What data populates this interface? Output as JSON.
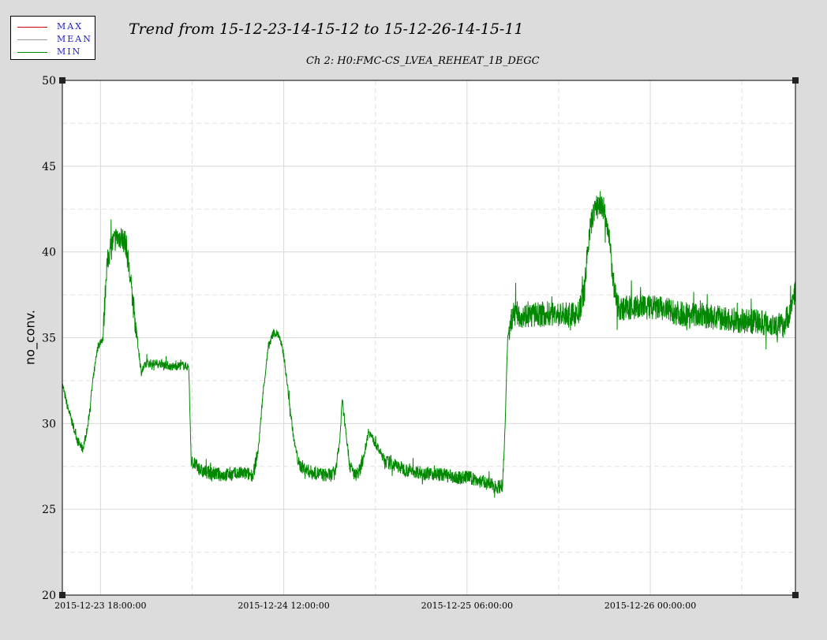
{
  "legend": {
    "items": [
      {
        "label": "MAX",
        "color": "#cc0000"
      },
      {
        "label": "MEAN",
        "color": "#999999"
      },
      {
        "label": "MIN",
        "color": "#008800"
      }
    ]
  },
  "chart_data": {
    "type": "line",
    "title": "Trend from 15-12-23-14-15-12 to 15-12-26-14-15-11",
    "subtitle": "Ch 2: H0:FMC-CS_LVEA_REHEAT_1B_DEGC",
    "xlabel": "",
    "ylabel": "no_conv.",
    "x_range": [
      "2015-12-23 14:15:12",
      "2015-12-26 14:15:11"
    ],
    "ylim": [
      20,
      50
    ],
    "yticks": [
      20,
      25,
      30,
      35,
      40,
      45,
      50
    ],
    "xticks": [
      {
        "time": "2015-12-23 18:00:00",
        "label": "2015-12-23 18:00:00"
      },
      {
        "time": "2015-12-24 12:00:00",
        "label": "2015-12-24 12:00:00"
      },
      {
        "time": "2015-12-25 06:00:00",
        "label": "2015-12-25 06:00:00"
      },
      {
        "time": "2015-12-26 00:00:00",
        "label": "2015-12-26 00:00:00"
      }
    ],
    "grid": true,
    "series": [
      {
        "name": "MIN",
        "color": "#008800",
        "points": [
          [
            "2015-12-23 14:15",
            32.3
          ],
          [
            "2015-12-23 14:45",
            31.0
          ],
          [
            "2015-12-23 15:15",
            30.0
          ],
          [
            "2015-12-23 15:45",
            29.0
          ],
          [
            "2015-12-23 16:15",
            28.5
          ],
          [
            "2015-12-23 16:45",
            29.8
          ],
          [
            "2015-12-23 17:15",
            32.5
          ],
          [
            "2015-12-23 17:45",
            34.5
          ],
          [
            "2015-12-23 18:15",
            35.0
          ],
          [
            "2015-12-23 18:35",
            39.0
          ],
          [
            "2015-12-23 19:00",
            40.3
          ],
          [
            "2015-12-23 19:30",
            40.8
          ],
          [
            "2015-12-23 20:00",
            40.9
          ],
          [
            "2015-12-23 20:30",
            40.5
          ],
          [
            "2015-12-23 21:00",
            38.0
          ],
          [
            "2015-12-23 21:30",
            35.5
          ],
          [
            "2015-12-23 22:00",
            33.0
          ],
          [
            "2015-12-23 22:30",
            33.5
          ],
          [
            "2015-12-24 00:00",
            33.5
          ],
          [
            "2015-12-24 01:00",
            33.3
          ],
          [
            "2015-12-24 02:00",
            33.4
          ],
          [
            "2015-12-24 02:40",
            33.3
          ],
          [
            "2015-12-24 02:55",
            27.8
          ],
          [
            "2015-12-24 04:00",
            27.2
          ],
          [
            "2015-12-24 06:00",
            27.0
          ],
          [
            "2015-12-24 08:00",
            27.1
          ],
          [
            "2015-12-24 09:00",
            27.0
          ],
          [
            "2015-12-24 09:30",
            28.5
          ],
          [
            "2015-12-24 10:00",
            32.0
          ],
          [
            "2015-12-24 10:30",
            34.5
          ],
          [
            "2015-12-24 11:00",
            35.3
          ],
          [
            "2015-12-24 11:30",
            35.2
          ],
          [
            "2015-12-24 12:00",
            34.0
          ],
          [
            "2015-12-24 12:30",
            31.5
          ],
          [
            "2015-12-24 13:00",
            29.0
          ],
          [
            "2015-12-24 13:30",
            27.6
          ],
          [
            "2015-12-24 14:30",
            27.2
          ],
          [
            "2015-12-24 16:00",
            27.0
          ],
          [
            "2015-12-24 17:00",
            27.0
          ],
          [
            "2015-12-24 17:30",
            29.0
          ],
          [
            "2015-12-24 17:45",
            31.5
          ],
          [
            "2015-12-24 18:00",
            30.0
          ],
          [
            "2015-12-24 18:30",
            27.5
          ],
          [
            "2015-12-24 19:00",
            27.0
          ],
          [
            "2015-12-24 19:30",
            27.3
          ],
          [
            "2015-12-24 20:00",
            28.5
          ],
          [
            "2015-12-24 20:20",
            29.6
          ],
          [
            "2015-12-24 21:00",
            28.8
          ],
          [
            "2015-12-24 22:00",
            27.8
          ],
          [
            "2015-12-25 00:00",
            27.3
          ],
          [
            "2015-12-25 02:00",
            27.1
          ],
          [
            "2015-12-25 04:00",
            27.0
          ],
          [
            "2015-12-25 05:00",
            26.8
          ],
          [
            "2015-12-25 06:00",
            26.9
          ],
          [
            "2015-12-25 07:00",
            26.7
          ],
          [
            "2015-12-25 08:00",
            26.5
          ],
          [
            "2015-12-25 09:00",
            26.3
          ],
          [
            "2015-12-25 09:30",
            26.4
          ],
          [
            "2015-12-25 09:45",
            30.0
          ],
          [
            "2015-12-25 10:00",
            35.2
          ],
          [
            "2015-12-25 10:30",
            36.4
          ],
          [
            "2015-12-25 12:00",
            36.3
          ],
          [
            "2015-12-25 14:00",
            36.4
          ],
          [
            "2015-12-25 16:00",
            36.3
          ],
          [
            "2015-12-25 17:00",
            36.4
          ],
          [
            "2015-12-25 17:30",
            37.8
          ],
          [
            "2015-12-25 18:00",
            41.0
          ],
          [
            "2015-12-25 18:30",
            42.5
          ],
          [
            "2015-12-25 19:00",
            42.8
          ],
          [
            "2015-12-25 19:30",
            42.4
          ],
          [
            "2015-12-25 20:00",
            40.5
          ],
          [
            "2015-12-25 20:30",
            37.5
          ],
          [
            "2015-12-25 21:00",
            36.7
          ],
          [
            "2015-12-25 23:00",
            36.8
          ],
          [
            "2015-12-26 01:00",
            36.7
          ],
          [
            "2015-12-26 03:00",
            36.4
          ],
          [
            "2015-12-26 05:00",
            36.3
          ],
          [
            "2015-12-26 07:00",
            36.1
          ],
          [
            "2015-12-26 09:00",
            36.0
          ],
          [
            "2015-12-26 11:00",
            35.9
          ],
          [
            "2015-12-26 13:00",
            35.7
          ],
          [
            "2015-12-26 13:45",
            36.5
          ],
          [
            "2015-12-26 14:15",
            38.0
          ]
        ]
      }
    ]
  }
}
